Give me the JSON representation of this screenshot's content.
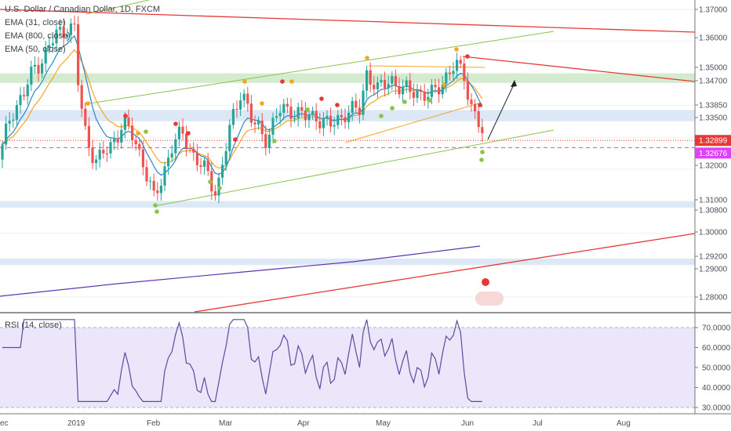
{
  "chart_data": {
    "type": "candlestick",
    "title": "U.S. Dollar / Canadian Dollar, 1D, FXCM",
    "indicators": [
      {
        "label": "EMA (31, close)",
        "color": "#2e86c1"
      },
      {
        "label": "EMA (800, close)",
        "color": "#5e35b1"
      },
      {
        "label": "EMA (50, close)",
        "color": "#f5a623"
      }
    ],
    "rsi": {
      "label": "RSI (14, close)",
      "upper": 70,
      "lower": 30,
      "ticks": [
        "70.0000",
        "60.0000",
        "50.0000",
        "40.0000",
        "30.0000"
      ],
      "color": "#5b4c9c"
    },
    "price_axis": {
      "ticks": [
        "1.37000",
        "1.36000",
        "1.35000",
        "1.34700",
        "1.33850",
        "1.33500",
        "1.32000",
        "1.31000",
        "1.30800",
        "1.30000",
        "1.29200",
        "1.29000",
        "1.28000"
      ],
      "last_price": "1.32899",
      "last_price_color": "#e53935",
      "marker_price": "1.32676",
      "marker_color": "#e040fb"
    },
    "time_axis": [
      "ec",
      "2019",
      "Feb",
      "Mar",
      "Apr",
      "May",
      "Jun",
      "Jul",
      "Aug"
    ],
    "zones": [
      {
        "from": 1.35,
        "to": 1.347,
        "color": "#cde8c8"
      },
      {
        "from": 1.3385,
        "to": 1.335,
        "color": "#d6e4f3"
      },
      {
        "from": 1.31,
        "to": 1.308,
        "color": "#d6e4f3"
      },
      {
        "from": 1.292,
        "to": 1.29,
        "color": "#d6e4f3"
      }
    ],
    "colors": {
      "up": "#26a69a",
      "down": "#ef5350",
      "channel": "#8bc34a",
      "trend": "#e53935"
    }
  }
}
